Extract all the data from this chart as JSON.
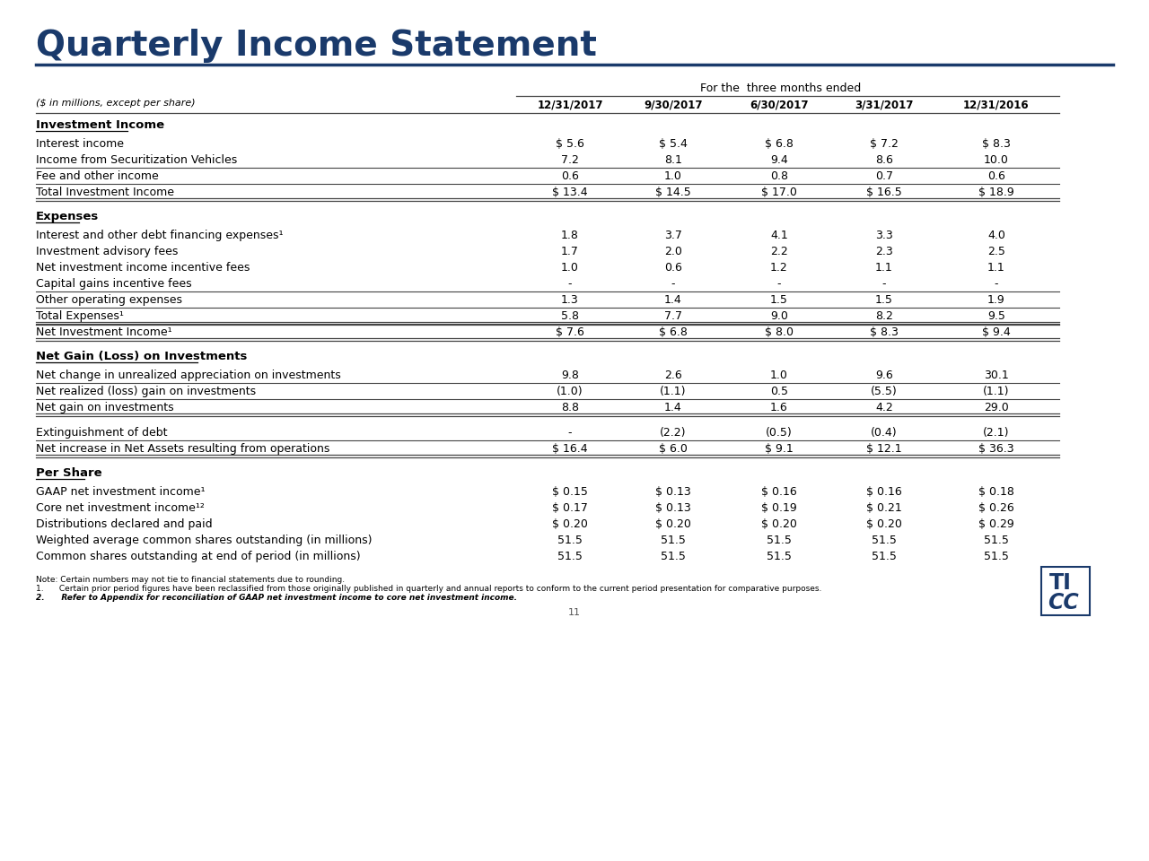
{
  "title": "Quarterly Income Statement",
  "title_color": "#1a3a6b",
  "title_fontsize": 28,
  "header_period": "For the  three months ended",
  "subtitle_italic": "($ in millions, except per share)",
  "columns": [
    "12/31/2017",
    "9/30/2017",
    "6/30/2017",
    "3/31/2017",
    "12/31/2016"
  ],
  "sections": [
    {
      "name": "Investment Income",
      "underline": true,
      "rows": [
        {
          "label": "Interest income",
          "values": [
            "$ 5.6",
            "$ 5.4",
            "$ 6.8",
            "$ 7.2",
            "$ 8.3"
          ],
          "bold": false,
          "topline": false,
          "bottomline": false
        },
        {
          "label": "Income from Securitization Vehicles",
          "values": [
            "7.2",
            "8.1",
            "9.4",
            "8.6",
            "10.0"
          ],
          "bold": false,
          "topline": false,
          "bottomline": false
        },
        {
          "label": "Fee and other income",
          "values": [
            "0.6",
            "1.0",
            "0.8",
            "0.7",
            "0.6"
          ],
          "bold": false,
          "topline": true,
          "bottomline": false
        },
        {
          "label": "Total Investment Income",
          "values": [
            "$ 13.4",
            "$ 14.5",
            "$ 17.0",
            "$ 16.5",
            "$ 18.9"
          ],
          "bold": false,
          "topline": true,
          "bottomline": true
        }
      ]
    },
    {
      "name": "Expenses",
      "underline": true,
      "rows": [
        {
          "label": "Interest and other debt financing expenses¹",
          "values": [
            "1.8",
            "3.7",
            "4.1",
            "3.3",
            "4.0"
          ],
          "bold": false,
          "topline": false,
          "bottomline": false
        },
        {
          "label": "Investment advisory fees",
          "values": [
            "1.7",
            "2.0",
            "2.2",
            "2.3",
            "2.5"
          ],
          "bold": false,
          "topline": false,
          "bottomline": false
        },
        {
          "label": "Net investment income incentive fees",
          "values": [
            "1.0",
            "0.6",
            "1.2",
            "1.1",
            "1.1"
          ],
          "bold": false,
          "topline": false,
          "bottomline": false
        },
        {
          "label": "Capital gains incentive fees",
          "values": [
            "-",
            "-",
            "-",
            "-",
            "-"
          ],
          "bold": false,
          "topline": false,
          "bottomline": false
        },
        {
          "label": "Other operating expenses",
          "values": [
            "1.3",
            "1.4",
            "1.5",
            "1.5",
            "1.9"
          ],
          "bold": false,
          "topline": true,
          "bottomline": false
        },
        {
          "label": "Total Expenses¹",
          "values": [
            "5.8",
            "7.7",
            "9.0",
            "8.2",
            "9.5"
          ],
          "bold": false,
          "topline": true,
          "bottomline": true
        },
        {
          "label": "Net Investment Income¹",
          "values": [
            "$ 7.6",
            "$ 6.8",
            "$ 8.0",
            "$ 8.3",
            "$ 9.4"
          ],
          "bold": false,
          "topline": true,
          "bottomline": true
        }
      ]
    },
    {
      "name": "Net Gain (Loss) on Investments",
      "underline": true,
      "rows": [
        {
          "label": "Net change in unrealized appreciation on investments",
          "values": [
            "9.8",
            "2.6",
            "1.0",
            "9.6",
            "30.1"
          ],
          "bold": false,
          "topline": false,
          "bottomline": false
        },
        {
          "label": "Net realized (loss) gain on investments",
          "values": [
            "(1.0)",
            "(1.1)",
            "0.5",
            "(5.5)",
            "(1.1)"
          ],
          "bold": false,
          "topline": true,
          "bottomline": false
        },
        {
          "label": "Net gain on investments",
          "values": [
            "8.8",
            "1.4",
            "1.6",
            "4.2",
            "29.0"
          ],
          "bold": false,
          "topline": true,
          "bottomline": true
        }
      ]
    },
    {
      "name": "",
      "underline": false,
      "rows": [
        {
          "label": "Extinguishment of debt",
          "values": [
            "-",
            "(2.2)",
            "(0.5)",
            "(0.4)",
            "(2.1)"
          ],
          "bold": false,
          "topline": false,
          "bottomline": false
        },
        {
          "label": "Net increase in Net Assets resulting from operations",
          "values": [
            "$ 16.4",
            "$ 6.0",
            "$ 9.1",
            "$ 12.1",
            "$ 36.3"
          ],
          "bold": false,
          "topline": true,
          "bottomline": true
        }
      ]
    },
    {
      "name": "Per Share",
      "underline": true,
      "rows": [
        {
          "label": "GAAP net investment income¹",
          "values": [
            "$ 0.15",
            "$ 0.13",
            "$ 0.16",
            "$ 0.16",
            "$ 0.18"
          ],
          "bold": false,
          "topline": false,
          "bottomline": false
        },
        {
          "label": "Core net investment income¹²",
          "values": [
            "$ 0.17",
            "$ 0.13",
            "$ 0.19",
            "$ 0.21",
            "$ 0.26"
          ],
          "bold": false,
          "topline": false,
          "bottomline": false
        },
        {
          "label": "Distributions declared and paid",
          "values": [
            "$ 0.20",
            "$ 0.20",
            "$ 0.20",
            "$ 0.20",
            "$ 0.29"
          ],
          "bold": false,
          "topline": false,
          "bottomline": false
        },
        {
          "label": "Weighted average common shares outstanding (in millions)",
          "values": [
            "51.5",
            "51.5",
            "51.5",
            "51.5",
            "51.5"
          ],
          "bold": false,
          "topline": false,
          "bottomline": false
        },
        {
          "label": "Common shares outstanding at end of period (in millions)",
          "values": [
            "51.5",
            "51.5",
            "51.5",
            "51.5",
            "51.5"
          ],
          "bold": false,
          "topline": false,
          "bottomline": false
        }
      ]
    }
  ],
  "footnotes": [
    "Note: Certain numbers may not tie to financial statements due to rounding.",
    "1.      Certain prior period figures have been reclassified from those originally published in quarterly and annual reports to conform to the current period presentation for comparative purposes.",
    "2.      Refer to Appendix for reconciliation of GAAP net investment income to core net investment income."
  ],
  "page_num": "11",
  "bg_color": "#ffffff",
  "text_color": "#000000",
  "header_color": "#1a3a6b",
  "line_color": "#1a3a6b"
}
